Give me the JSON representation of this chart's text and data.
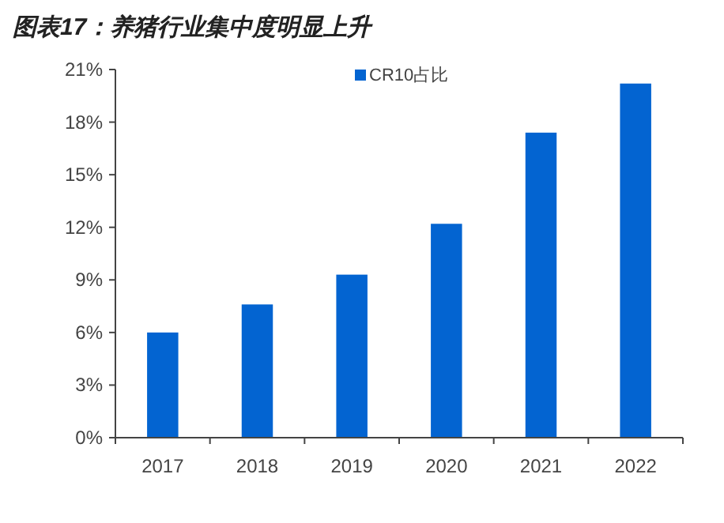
{
  "chart_data": {
    "type": "bar",
    "title": "图表17：养猪行业集中度明显上升",
    "categories": [
      "2017",
      "2018",
      "2019",
      "2020",
      "2021",
      "2022"
    ],
    "series": [
      {
        "name": "CR10占比",
        "color": "#0364d1",
        "values": [
          6.0,
          7.6,
          9.3,
          12.2,
          17.4,
          20.2
        ]
      }
    ],
    "ylim": [
      0,
      21
    ],
    "yticks": [
      {
        "value": 0,
        "label": "0%"
      },
      {
        "value": 3,
        "label": "3%"
      },
      {
        "value": 6,
        "label": "6%"
      },
      {
        "value": 9,
        "label": "9%"
      },
      {
        "value": 12,
        "label": "12%"
      },
      {
        "value": 15,
        "label": "15%"
      },
      {
        "value": 18,
        "label": "18%"
      },
      {
        "value": 21,
        "label": "21%"
      }
    ],
    "legend": "top",
    "grid": false
  }
}
